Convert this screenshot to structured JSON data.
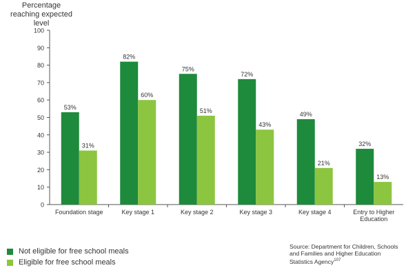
{
  "chart_data": {
    "type": "bar",
    "title": "",
    "ylabel": "Percentage reaching expected level",
    "xlabel": "",
    "ylim": [
      0,
      100
    ],
    "yticks": [
      0,
      10,
      20,
      30,
      40,
      50,
      60,
      70,
      80,
      90,
      100
    ],
    "grid": false,
    "legend_position": "bottom-left",
    "categories": [
      [
        "Foundation stage"
      ],
      [
        "Key stage 1"
      ],
      [
        "Key stage 2"
      ],
      [
        "Key stage 3"
      ],
      [
        "Key stage 4"
      ],
      [
        "Entry to Higher",
        "Education"
      ]
    ],
    "series": [
      {
        "name": "Not eligible for free school meals",
        "color": "#1e8a3c",
        "values": [
          53,
          82,
          75,
          72,
          49,
          32
        ],
        "labels": [
          "53%",
          "82%",
          "75%",
          "72%",
          "49%",
          "32%"
        ]
      },
      {
        "name": "Eligible for free school meals",
        "color": "#8cc540",
        "values": [
          31,
          60,
          51,
          43,
          21,
          13
        ],
        "labels": [
          "31%",
          "60%",
          "51%",
          "43%",
          "21%",
          "13%"
        ]
      }
    ]
  },
  "source": {
    "text": "Source: Department for Children, Schools and Families and Higher Education Statistics Agency",
    "footnote": "107"
  }
}
